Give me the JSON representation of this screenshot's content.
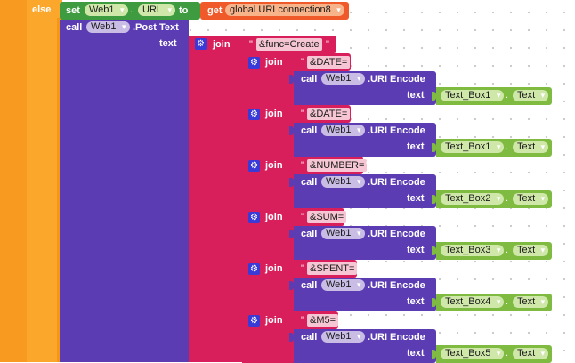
{
  "else_label": "else",
  "set_label": "set",
  "to_label": "to",
  "get_label": "get",
  "call_label": "call",
  "text_label": "text",
  "join_label": "join",
  "component": "Web1",
  "url_property": "URL",
  "global_var": "global URLconnection8",
  "post_text_method": ".Post Text",
  "uri_encode_method": ".URI Encode",
  "textbox_property": "Text",
  "func_string": "&func=Create",
  "quote": "\"",
  "dot": ".",
  "join_rows": [
    {
      "param": "&DATE=",
      "textbox": "Text_Box1"
    },
    {
      "param": "&DATE=",
      "textbox": "Text_Box1"
    },
    {
      "param": "&NUMBER=",
      "textbox": "Text_Box2"
    },
    {
      "param": "&SUM=",
      "textbox": "Text_Box3"
    },
    {
      "param": "&SPENT=",
      "textbox": "Text_Box4"
    },
    {
      "param": "&M5=",
      "textbox": "Text_Box5"
    }
  ],
  "colors": {
    "control": "#FBA72C",
    "control_dark": "#FFB300",
    "component": "#5B3CB3",
    "component_dark": "#4A2F98",
    "set_block": "#3E9B40",
    "variable": "#F0592A",
    "text": "#D81E5B",
    "textbox": "#7FBB40"
  }
}
